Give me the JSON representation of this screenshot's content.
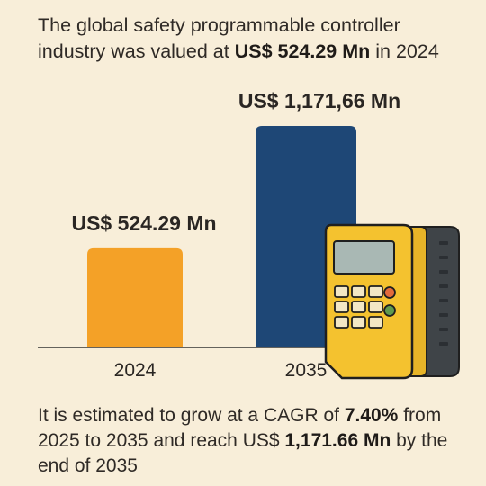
{
  "headline": {
    "pre": "The global safety programmable controller industry was valued at ",
    "value": "US$ 524.29 Mn",
    "post": " in 2024"
  },
  "footer": {
    "pre": "It is estimated to grow at a CAGR of ",
    "cagr": "7.40%",
    "mid": " from 2025 to 2035 and reach US$ ",
    "value": "1,171.66 Mn",
    "post": " by the end of 2035"
  },
  "chart_data": {
    "type": "bar",
    "categories": [
      "2024",
      "2035"
    ],
    "values": [
      524.29,
      1171.66
    ],
    "data_labels": [
      "US$ 524.29 Mn",
      "US$ 1,171,66 Mn"
    ],
    "colors": [
      "#f4a127",
      "#1e4776"
    ],
    "xlabel": "",
    "ylabel": "",
    "grid": false,
    "legend": "none"
  },
  "colors": {
    "background": "#f8eed9",
    "device_body": "#f4c22f",
    "device_side": "#3f4448"
  },
  "icons": [
    "programmable-controller-icon"
  ]
}
